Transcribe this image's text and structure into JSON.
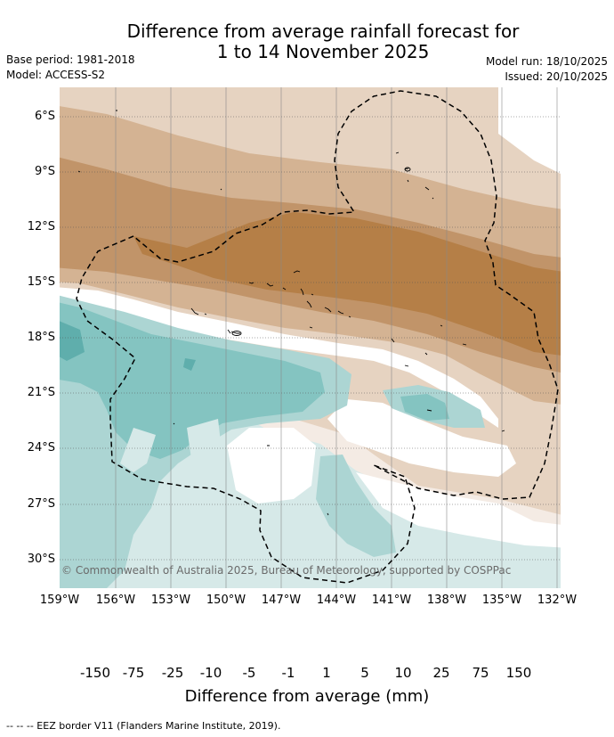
{
  "title": {
    "line1": "Difference from average rainfall forecast for",
    "line2": "1 to 14 November 2025"
  },
  "info": {
    "base_period": "Base period: 1981-2018",
    "model": "Model: ACCESS-S2",
    "model_run": "Model run: 18/10/2025",
    "issued": "Issued: 20/10/2025"
  },
  "map": {
    "lat_labels": [
      "6°S",
      "9°S",
      "12°S",
      "15°S",
      "18°S",
      "21°S",
      "24°S",
      "27°S",
      "30°S"
    ],
    "lon_labels": [
      "159°W",
      "156°W",
      "153°W",
      "150°W",
      "147°W",
      "144°W",
      "141°W",
      "138°W",
      "135°W",
      "132°W"
    ],
    "copyright": "© Commonwealth of Australia 2025, Bureau of Meteorology, supported by COSPPac",
    "colors": {
      "c_lt150": "#a9713b",
      "c_150_75": "#b57f47",
      "c_75_25": "#c19469",
      "c_25_10": "#d4b393",
      "c_10_5": "#e6d3c1",
      "c_5_1": "#f4ebe4",
      "c_neutral": "#ffffff",
      "c_1_5": "#d6e9e8",
      "c_5_10": "#acd5d3",
      "c_10_25": "#84c4c1",
      "c_25_75": "#5faeac",
      "c_75_150": "#339b97",
      "c_gt150": "#1d7a76"
    }
  },
  "colorbar": {
    "ticks": [
      "-150",
      "-75",
      "-25",
      "-10",
      "-5",
      "-1",
      "1",
      "5",
      "10",
      "25",
      "75",
      "150"
    ],
    "label": "Difference from average (mm)"
  },
  "footer": "--  --  -- EEZ border V11 (Flanders Marine Institute, 2019)."
}
